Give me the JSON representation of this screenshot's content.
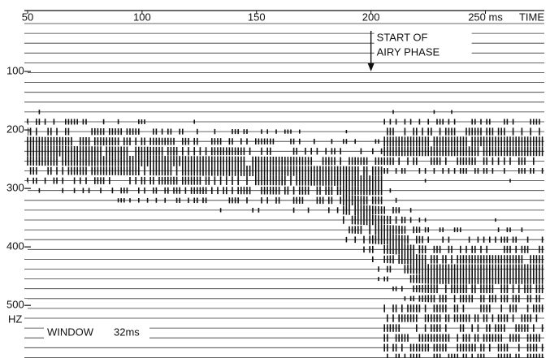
{
  "chart_data": {
    "type": "spectrogram",
    "xlim": [
      50,
      275
    ],
    "xticks": [
      50,
      100,
      150,
      200,
      {
        "value": 250,
        "label": "250 ms"
      }
    ],
    "xlabel": "TIME",
    "ylim": [
      0,
      590
    ],
    "yticks": [
      100,
      200,
      300,
      400,
      500
    ],
    "ylabel": "HZ",
    "annotation_lines": [
      "START OF",
      "AIRY PHASE"
    ],
    "annotation_x": 200,
    "window_label": "WINDOW",
    "window_value": "32ms"
  }
}
